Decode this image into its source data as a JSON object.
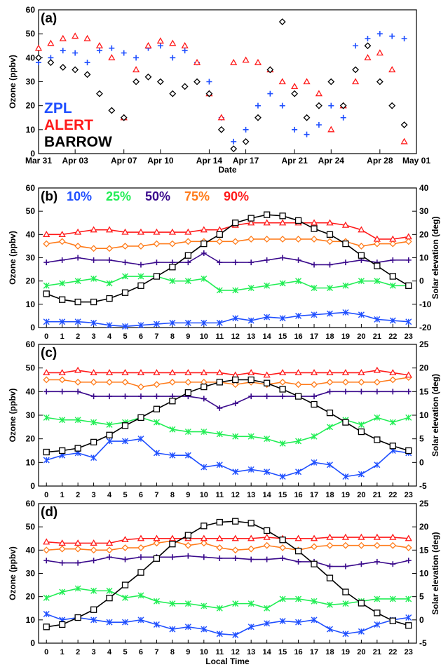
{
  "colors": {
    "blue": "#1f4fff",
    "red": "#ff1a1a",
    "black": "#000000",
    "green": "#22ee55",
    "purple": "#3a0a8c",
    "orange": "#ff7b1a"
  },
  "chart_data": [
    {
      "id": "a",
      "panel_label": "(a)",
      "type": "scatter",
      "xlabel": "Date",
      "ylabel": "Ozone (ppbv)",
      "ylim": [
        0,
        60
      ],
      "yticks": [
        0,
        10,
        20,
        30,
        40,
        50,
        60
      ],
      "xlim": [
        "2012-03-31",
        "2012-05-01"
      ],
      "xtick_labels": [
        "Mar 31",
        "Apr 03",
        "Apr 07",
        "Apr 10",
        "Apr 14",
        "Apr 17",
        "Apr 21",
        "Apr 24",
        "Apr 28",
        "May 01"
      ],
      "xtick_dates": [
        "2012-03-31",
        "2012-04-03",
        "2012-04-07",
        "2012-04-10",
        "2012-04-14",
        "2012-04-17",
        "2012-04-21",
        "2012-04-24",
        "2012-04-28",
        "2012-05-01"
      ],
      "legend": [
        "ZPL",
        "ALERT",
        "BARROW"
      ],
      "series": [
        {
          "name": "ZPL",
          "color": "#1f4fff",
          "marker": "plus",
          "x": [
            "2012-03-31",
            "2012-04-01",
            "2012-04-02",
            "2012-04-03",
            "2012-04-04",
            "2012-04-05",
            "2012-04-06",
            "2012-04-07",
            "2012-04-08",
            "2012-04-09",
            "2012-04-10",
            "2012-04-11",
            "2012-04-12",
            "2012-04-13",
            "2012-04-14",
            "2012-04-15",
            "2012-04-16",
            "2012-04-17",
            "2012-04-18",
            "2012-04-19",
            "2012-04-20",
            "2012-04-21",
            "2012-04-22",
            "2012-04-23",
            "2012-04-24",
            "2012-04-25",
            "2012-04-26",
            "2012-04-27",
            "2012-04-28",
            "2012-04-29",
            "2012-04-30"
          ],
          "y": [
            38,
            40,
            43,
            42,
            38,
            43,
            44,
            42,
            40,
            44,
            45,
            40,
            43,
            38,
            30,
            15,
            5,
            10,
            20,
            25,
            20,
            10,
            8,
            12,
            20,
            15,
            45,
            48,
            50,
            49,
            48
          ]
        },
        {
          "name": "ALERT",
          "color": "#ff1a1a",
          "marker": "triangle",
          "x": [
            "2012-03-31",
            "2012-04-01",
            "2012-04-02",
            "2012-04-03",
            "2012-04-04",
            "2012-04-05",
            "2012-04-06",
            "2012-04-07",
            "2012-04-08",
            "2012-04-09",
            "2012-04-10",
            "2012-04-11",
            "2012-04-12",
            "2012-04-13",
            "2012-04-14",
            "2012-04-15",
            "2012-04-16",
            "2012-04-17",
            "2012-04-18",
            "2012-04-19",
            "2012-04-20",
            "2012-04-21",
            "2012-04-22",
            "2012-04-23",
            "2012-04-24",
            "2012-04-25",
            "2012-04-26",
            "2012-04-27",
            "2012-04-28",
            "2012-04-29",
            "2012-04-30"
          ],
          "y": [
            44,
            46,
            48,
            49,
            48,
            45,
            40,
            15,
            35,
            45,
            47,
            46,
            45,
            38,
            25,
            15,
            38,
            39,
            38,
            35,
            30,
            28,
            30,
            25,
            10,
            20,
            30,
            40,
            42,
            35,
            5
          ]
        },
        {
          "name": "BARROW",
          "color": "#000000",
          "marker": "diamond",
          "x": [
            "2012-03-31",
            "2012-04-01",
            "2012-04-02",
            "2012-04-03",
            "2012-04-04",
            "2012-04-05",
            "2012-04-06",
            "2012-04-07",
            "2012-04-08",
            "2012-04-09",
            "2012-04-10",
            "2012-04-11",
            "2012-04-12",
            "2012-04-13",
            "2012-04-14",
            "2012-04-15",
            "2012-04-16",
            "2012-04-17",
            "2012-04-18",
            "2012-04-19",
            "2012-04-20",
            "2012-04-21",
            "2012-04-22",
            "2012-04-23",
            "2012-04-24",
            "2012-04-25",
            "2012-04-26",
            "2012-04-27",
            "2012-04-28",
            "2012-04-29",
            "2012-04-30"
          ],
          "y": [
            40,
            38,
            36,
            35,
            33,
            25,
            18,
            15,
            30,
            32,
            30,
            25,
            28,
            30,
            25,
            10,
            2,
            5,
            15,
            35,
            55,
            25,
            15,
            20,
            30,
            20,
            35,
            45,
            30,
            20,
            12
          ]
        }
      ]
    },
    {
      "id": "b",
      "panel_label": "(b)",
      "type": "line",
      "xlabel": "",
      "ylabel": "Ozone (ppbv)",
      "y2label": "Solar elevation (deg)",
      "ylim": [
        0,
        60
      ],
      "yticks": [
        0,
        10,
        20,
        30,
        40,
        50,
        60
      ],
      "y2lim": [
        -20,
        40
      ],
      "y2ticks": [
        -20,
        -10,
        0,
        10,
        20,
        30,
        40
      ],
      "x": [
        0,
        1,
        2,
        3,
        4,
        5,
        6,
        7,
        8,
        9,
        10,
        11,
        12,
        13,
        14,
        15,
        16,
        17,
        18,
        19,
        20,
        21,
        22,
        23
      ],
      "legend": [
        "10%",
        "25%",
        "50%",
        "75%",
        "90%"
      ],
      "series": [
        {
          "name": "10%",
          "color": "#1f4fff",
          "marker": "x",
          "values": [
            2.5,
            2.5,
            2.5,
            2,
            1,
            0.5,
            1,
            1.5,
            2,
            2,
            2,
            2,
            4,
            3,
            4.5,
            4,
            5,
            5.5,
            6,
            6.5,
            5.5,
            3.5,
            3,
            2.5
          ]
        },
        {
          "name": "25%",
          "color": "#22ee55",
          "marker": "x",
          "values": [
            18,
            19,
            20,
            21,
            19,
            22,
            22,
            22,
            20,
            20,
            21,
            16,
            16,
            17,
            18,
            19,
            20,
            17,
            17,
            18,
            20,
            20,
            18,
            18
          ]
        },
        {
          "name": "50%",
          "color": "#3a0a8c",
          "marker": "plus",
          "values": [
            28,
            29,
            30,
            29,
            29,
            28,
            27,
            28,
            28,
            28,
            32,
            28,
            28,
            28,
            29,
            30,
            29,
            27,
            27,
            28,
            29,
            28,
            29,
            29
          ]
        },
        {
          "name": "75%",
          "color": "#ff7b1a",
          "marker": "diamond",
          "values": [
            36,
            37,
            35,
            34,
            34,
            35,
            35,
            36,
            36,
            37,
            37,
            37,
            37,
            38,
            38,
            38,
            38,
            38,
            37,
            37,
            35,
            36,
            36,
            37
          ]
        },
        {
          "name": "90%",
          "color": "#ff1a1a",
          "marker": "triangle",
          "values": [
            40,
            40,
            41,
            42,
            42,
            41,
            41,
            41,
            41,
            41,
            42,
            42,
            44,
            45,
            45,
            45,
            45,
            45,
            45,
            44,
            42,
            38,
            38,
            39
          ]
        }
      ],
      "solar": {
        "color": "#000000",
        "marker": "square",
        "values": [
          -5.5,
          -8,
          -9,
          -9,
          -7.5,
          -5,
          -2,
          2,
          6,
          11,
          16,
          20,
          25,
          27,
          28.5,
          28,
          26,
          22.5,
          20,
          16,
          11,
          6.5,
          2,
          -2
        ]
      }
    },
    {
      "id": "c",
      "panel_label": "(c)",
      "type": "line",
      "xlabel": "",
      "ylabel": "Ozone (ppbv)",
      "y2label": "Solar elevation (deg)",
      "ylim": [
        0,
        60
      ],
      "yticks": [
        0,
        10,
        20,
        30,
        40,
        50,
        60
      ],
      "y2lim": [
        -5,
        25
      ],
      "y2ticks": [
        -5,
        0,
        5,
        10,
        15,
        20,
        25
      ],
      "x": [
        0,
        1,
        2,
        3,
        4,
        5,
        6,
        7,
        8,
        9,
        10,
        11,
        12,
        13,
        14,
        15,
        16,
        17,
        18,
        19,
        20,
        21,
        22,
        23
      ],
      "series": [
        {
          "name": "10%",
          "color": "#1f4fff",
          "marker": "x",
          "values": [
            11,
            13,
            14,
            12,
            19,
            19,
            20,
            14,
            13,
            13,
            8,
            9,
            6,
            7,
            6,
            4,
            6,
            10,
            9,
            4,
            5,
            9,
            15,
            14
          ]
        },
        {
          "name": "25%",
          "color": "#22ee55",
          "marker": "x",
          "values": [
            29,
            28,
            28,
            27,
            26,
            27,
            29,
            27,
            24,
            23,
            23,
            22,
            21,
            21,
            20,
            18,
            19,
            21,
            25,
            28,
            26,
            29,
            27,
            29
          ]
        },
        {
          "name": "50%",
          "color": "#3a0a8c",
          "marker": "plus",
          "values": [
            40,
            40,
            40,
            38,
            38,
            38,
            38,
            38,
            38,
            38,
            37,
            33,
            35,
            38,
            38,
            38,
            38,
            38,
            40,
            40,
            40,
            40,
            40,
            40
          ]
        },
        {
          "name": "75%",
          "color": "#ff7b1a",
          "marker": "diamond",
          "values": [
            45,
            45,
            44,
            44,
            44,
            44,
            42,
            43,
            44,
            44,
            44,
            44,
            43,
            44,
            43,
            44,
            43,
            43,
            44,
            44,
            44,
            44,
            45,
            46
          ]
        },
        {
          "name": "90%",
          "color": "#ff1a1a",
          "marker": "triangle",
          "values": [
            48,
            48,
            49,
            48,
            48,
            48,
            48,
            48,
            48,
            48,
            48,
            48,
            47,
            48,
            47,
            48,
            48,
            48,
            48,
            48,
            48,
            49,
            48,
            47
          ]
        }
      ],
      "solar": {
        "color": "#000000",
        "marker": "square",
        "values": [
          2.2,
          2.5,
          3,
          4.3,
          5.8,
          7.8,
          9.5,
          11.3,
          13,
          14.8,
          16,
          17,
          17.5,
          17.5,
          16.8,
          15.5,
          14,
          12.3,
          10.5,
          8.5,
          6.5,
          4.8,
          3.5,
          2.5
        ]
      }
    },
    {
      "id": "d",
      "panel_label": "(d)",
      "type": "line",
      "xlabel": "Local Time",
      "ylabel": "Ozone (ppbv)",
      "y2label": "Solar elevation (deg)",
      "ylim": [
        0,
        60
      ],
      "yticks": [
        0,
        10,
        20,
        30,
        40,
        50,
        60
      ],
      "y2lim": [
        -5,
        25
      ],
      "y2ticks": [
        -5,
        0,
        5,
        10,
        15,
        20,
        25
      ],
      "x": [
        0,
        1,
        2,
        3,
        4,
        5,
        6,
        7,
        8,
        9,
        10,
        11,
        12,
        13,
        14,
        15,
        16,
        17,
        18,
        19,
        20,
        21,
        22,
        23
      ],
      "series": [
        {
          "name": "10%",
          "color": "#1f4fff",
          "marker": "x",
          "values": [
            12.5,
            10,
            11,
            10,
            9,
            9,
            10,
            8,
            6,
            7,
            6,
            4,
            3.5,
            7,
            8.5,
            9.5,
            9,
            10,
            6,
            4,
            5,
            8,
            10,
            11
          ]
        },
        {
          "name": "25%",
          "color": "#22ee55",
          "marker": "x",
          "values": [
            19.5,
            22,
            23.5,
            22.5,
            22.5,
            19.5,
            20.5,
            18,
            17,
            17,
            16,
            15,
            17,
            17,
            15,
            19,
            19,
            18,
            16.5,
            17,
            18,
            19,
            19,
            19
          ]
        },
        {
          "name": "50%",
          "color": "#3a0a8c",
          "marker": "plus",
          "values": [
            35.5,
            34.5,
            34.5,
            35.5,
            37,
            36,
            37,
            37,
            37,
            37.5,
            37,
            36.5,
            36.5,
            36,
            36,
            36.5,
            35,
            35,
            33,
            33,
            34,
            35,
            34,
            35.5
          ]
        },
        {
          "name": "75%",
          "color": "#ff7b1a",
          "marker": "diamond",
          "values": [
            40,
            40.5,
            40.5,
            40,
            40,
            41,
            41,
            43,
            44,
            42,
            43,
            41,
            40,
            40.5,
            42,
            41,
            40,
            41.5,
            42,
            42,
            42,
            42,
            42,
            41
          ]
        },
        {
          "name": "90%",
          "color": "#ff1a1a",
          "marker": "triangle",
          "values": [
            43.5,
            43,
            43,
            43,
            43,
            44.5,
            45,
            45,
            45,
            45,
            45,
            45,
            45,
            45,
            45.5,
            45,
            45,
            45,
            45.5,
            45.5,
            45.5,
            45.5,
            45.5,
            45
          ]
        }
      ],
      "solar": {
        "color": "#000000",
        "marker": "square",
        "values": [
          -1.5,
          -1,
          0.5,
          2.2,
          4.7,
          7.5,
          10.2,
          13.2,
          16.3,
          18.2,
          20.2,
          21,
          21.2,
          20.8,
          19.2,
          17.2,
          14.8,
          12,
          9,
          6,
          3.6,
          1.5,
          -0.2,
          -1.2
        ]
      }
    }
  ]
}
